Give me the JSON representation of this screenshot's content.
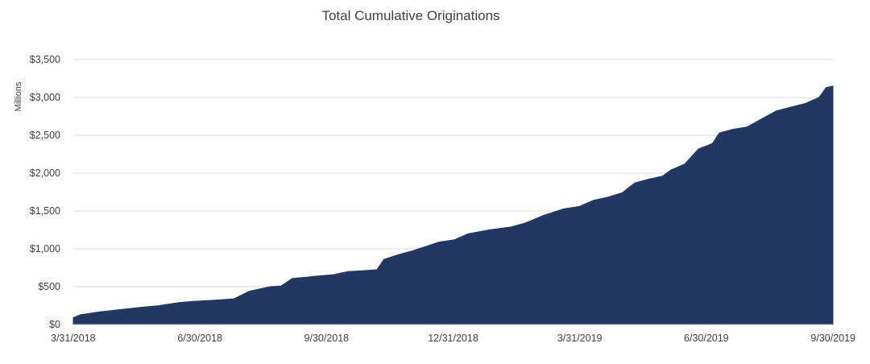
{
  "chart_data": {
    "type": "area",
    "title": "Total Cumulative Originations",
    "ylabel": "Millions",
    "xlabel": "",
    "y_ticks": [
      "$0",
      "$500",
      "$1,000",
      "$1,500",
      "$2,000",
      "$2,500",
      "$3,000",
      "$3,500"
    ],
    "y_tick_values": [
      0,
      500,
      1000,
      1500,
      2000,
      2500,
      3000,
      3500
    ],
    "x_ticks": [
      "3/31/2018",
      "6/30/2018",
      "9/30/2018",
      "12/31/2018",
      "3/31/2019",
      "6/30/2019",
      "9/30/2019"
    ],
    "ylim": [
      0,
      3500
    ],
    "xlim": [
      "2018-03-31",
      "2019-09-30"
    ],
    "grid": true,
    "color": "#223863",
    "series": [
      {
        "x": [
          "2018-03-31",
          "2018-04-05",
          "2018-04-20",
          "2018-04-25",
          "2018-05-10",
          "2018-05-20",
          "2018-06-01",
          "2018-06-15",
          "2018-06-25",
          "2018-07-10",
          "2018-07-25",
          "2018-08-05",
          "2018-08-20",
          "2018-08-28",
          "2018-09-05",
          "2018-09-15",
          "2018-09-20",
          "2018-10-05",
          "2018-10-15",
          "2018-10-25",
          "2018-11-05",
          "2018-11-10",
          "2018-11-20",
          "2018-11-30",
          "2018-12-10",
          "2018-12-20",
          "2018-12-31",
          "2019-01-10",
          "2019-01-25",
          "2019-02-10",
          "2019-02-20",
          "2019-03-05",
          "2019-03-20",
          "2019-03-31",
          "2019-04-10",
          "2019-04-20",
          "2019-05-01",
          "2019-05-10",
          "2019-05-20",
          "2019-05-30",
          "2019-06-05",
          "2019-06-15",
          "2019-06-25",
          "2019-07-05",
          "2019-07-10",
          "2019-07-20",
          "2019-07-30",
          "2019-08-10",
          "2019-08-20",
          "2019-09-01",
          "2019-09-10",
          "2019-09-20",
          "2019-09-25",
          "2019-09-30"
        ],
        "values": [
          90,
          130,
          170,
          180,
          210,
          230,
          250,
          290,
          305,
          320,
          340,
          440,
          500,
          510,
          610,
          625,
          635,
          660,
          700,
          710,
          725,
          860,
          920,
          970,
          1030,
          1090,
          1120,
          1200,
          1250,
          1290,
          1340,
          1440,
          1530,
          1560,
          1640,
          1680,
          1740,
          1870,
          1920,
          1960,
          2040,
          2120,
          2320,
          2390,
          2530,
          2580,
          2610,
          2720,
          2820,
          2880,
          2920,
          3000,
          3130,
          3150
        ]
      }
    ]
  }
}
